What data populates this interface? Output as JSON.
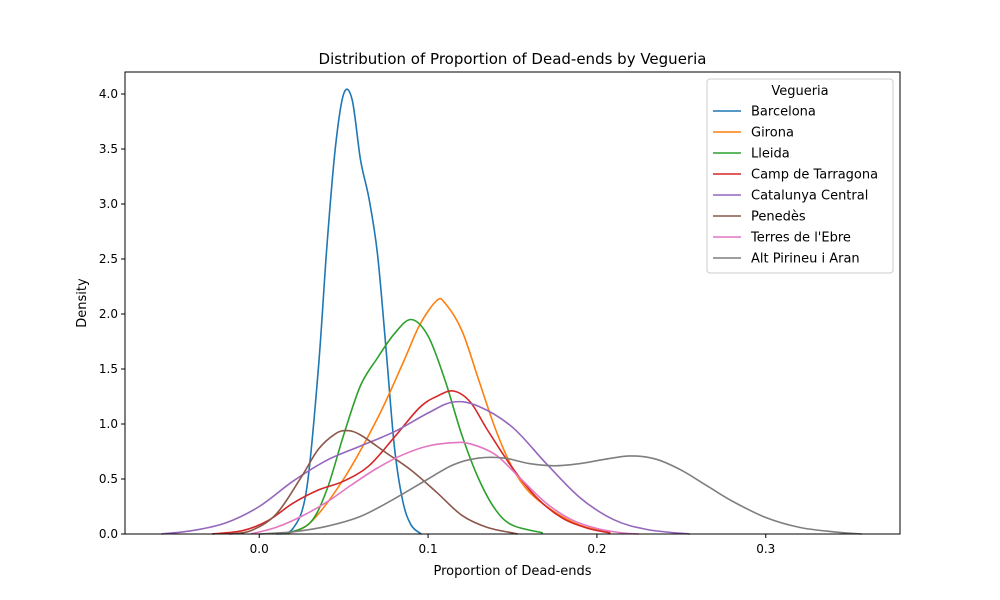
{
  "chart_data": {
    "type": "line",
    "title": "Distribution of Proportion of Dead-ends by Vegueria",
    "xlabel": "Proportion of Dead-ends",
    "ylabel": "Density",
    "xlim": [
      -0.0795,
      0.3795
    ],
    "ylim": [
      0,
      4.2
    ],
    "xticks": [
      0.0,
      0.1,
      0.2,
      0.3
    ],
    "xtick_labels": [
      "0.0",
      "0.1",
      "0.2",
      "0.3"
    ],
    "yticks": [
      0.0,
      0.5,
      1.0,
      1.5,
      2.0,
      2.5,
      3.0,
      3.5,
      4.0
    ],
    "ytick_labels": [
      "0.0",
      "0.5",
      "1.0",
      "1.5",
      "2.0",
      "2.5",
      "3.0",
      "3.5",
      "4.0"
    ],
    "grid": false,
    "legend": {
      "title": "Vegueria",
      "position": "top-right"
    },
    "series": [
      {
        "name": "Barcelona",
        "color": "#1f77b4",
        "points": [
          [
            0.01,
            0.0
          ],
          [
            0.02,
            0.05
          ],
          [
            0.028,
            0.4
          ],
          [
            0.035,
            1.5
          ],
          [
            0.04,
            2.6
          ],
          [
            0.045,
            3.5
          ],
          [
            0.05,
            4.0
          ],
          [
            0.055,
            3.95
          ],
          [
            0.06,
            3.4
          ],
          [
            0.065,
            3.05
          ],
          [
            0.07,
            2.55
          ],
          [
            0.075,
            1.7
          ],
          [
            0.08,
            0.8
          ],
          [
            0.085,
            0.3
          ],
          [
            0.09,
            0.08
          ],
          [
            0.096,
            0.0
          ]
        ]
      },
      {
        "name": "Girona",
        "color": "#ff7f0e",
        "points": [
          [
            0.015,
            0.0
          ],
          [
            0.03,
            0.1
          ],
          [
            0.05,
            0.5
          ],
          [
            0.07,
            1.05
          ],
          [
            0.085,
            1.55
          ],
          [
            0.095,
            1.9
          ],
          [
            0.105,
            2.12
          ],
          [
            0.11,
            2.1
          ],
          [
            0.12,
            1.85
          ],
          [
            0.13,
            1.4
          ],
          [
            0.14,
            0.95
          ],
          [
            0.15,
            0.6
          ],
          [
            0.16,
            0.38
          ],
          [
            0.175,
            0.2
          ],
          [
            0.19,
            0.08
          ],
          [
            0.208,
            0.01
          ]
        ]
      },
      {
        "name": "Lleida",
        "color": "#2ca02c",
        "points": [
          [
            0.015,
            0.0
          ],
          [
            0.03,
            0.1
          ],
          [
            0.04,
            0.4
          ],
          [
            0.05,
            0.9
          ],
          [
            0.06,
            1.35
          ],
          [
            0.07,
            1.6
          ],
          [
            0.08,
            1.82
          ],
          [
            0.09,
            1.95
          ],
          [
            0.1,
            1.8
          ],
          [
            0.11,
            1.4
          ],
          [
            0.12,
            0.9
          ],
          [
            0.13,
            0.5
          ],
          [
            0.14,
            0.22
          ],
          [
            0.15,
            0.08
          ],
          [
            0.168,
            0.01
          ]
        ]
      },
      {
        "name": "Camp de Tarragona",
        "color": "#d62728",
        "points": [
          [
            -0.028,
            0.0
          ],
          [
            -0.01,
            0.03
          ],
          [
            0.005,
            0.12
          ],
          [
            0.02,
            0.28
          ],
          [
            0.035,
            0.4
          ],
          [
            0.05,
            0.48
          ],
          [
            0.065,
            0.62
          ],
          [
            0.08,
            0.88
          ],
          [
            0.095,
            1.15
          ],
          [
            0.105,
            1.25
          ],
          [
            0.115,
            1.3
          ],
          [
            0.125,
            1.2
          ],
          [
            0.135,
            0.95
          ],
          [
            0.15,
            0.6
          ],
          [
            0.165,
            0.32
          ],
          [
            0.18,
            0.14
          ],
          [
            0.195,
            0.05
          ],
          [
            0.208,
            0.01
          ]
        ]
      },
      {
        "name": "Catalunya Central",
        "color": "#9467bd",
        "points": [
          [
            -0.058,
            0.0
          ],
          [
            -0.04,
            0.03
          ],
          [
            -0.02,
            0.1
          ],
          [
            0.0,
            0.25
          ],
          [
            0.02,
            0.48
          ],
          [
            0.04,
            0.67
          ],
          [
            0.06,
            0.8
          ],
          [
            0.08,
            0.93
          ],
          [
            0.1,
            1.1
          ],
          [
            0.115,
            1.2
          ],
          [
            0.13,
            1.16
          ],
          [
            0.15,
            0.97
          ],
          [
            0.17,
            0.64
          ],
          [
            0.19,
            0.33
          ],
          [
            0.21,
            0.13
          ],
          [
            0.23,
            0.04
          ],
          [
            0.255,
            0.0
          ]
        ]
      },
      {
        "name": "Penedès",
        "color": "#8c564b",
        "points": [
          [
            -0.018,
            0.0
          ],
          [
            -0.005,
            0.03
          ],
          [
            0.01,
            0.18
          ],
          [
            0.025,
            0.52
          ],
          [
            0.035,
            0.77
          ],
          [
            0.045,
            0.91
          ],
          [
            0.052,
            0.94
          ],
          [
            0.06,
            0.9
          ],
          [
            0.075,
            0.74
          ],
          [
            0.09,
            0.58
          ],
          [
            0.105,
            0.38
          ],
          [
            0.12,
            0.17
          ],
          [
            0.135,
            0.06
          ],
          [
            0.15,
            0.01
          ],
          [
            0.153,
            0.0
          ]
        ]
      },
      {
        "name": "Terres de l'Ebre",
        "color": "#e377c2",
        "points": [
          [
            -0.005,
            0.0
          ],
          [
            0.01,
            0.06
          ],
          [
            0.025,
            0.16
          ],
          [
            0.04,
            0.29
          ],
          [
            0.055,
            0.45
          ],
          [
            0.07,
            0.6
          ],
          [
            0.085,
            0.72
          ],
          [
            0.1,
            0.8
          ],
          [
            0.115,
            0.83
          ],
          [
            0.125,
            0.82
          ],
          [
            0.14,
            0.72
          ],
          [
            0.155,
            0.5
          ],
          [
            0.17,
            0.28
          ],
          [
            0.185,
            0.13
          ],
          [
            0.2,
            0.05
          ],
          [
            0.215,
            0.01
          ],
          [
            0.225,
            0.0
          ]
        ]
      },
      {
        "name": "Alt Pirineu i Aran",
        "color": "#7f7f7f",
        "points": [
          [
            0.0,
            0.0
          ],
          [
            0.02,
            0.02
          ],
          [
            0.04,
            0.07
          ],
          [
            0.06,
            0.16
          ],
          [
            0.08,
            0.32
          ],
          [
            0.1,
            0.5
          ],
          [
            0.115,
            0.63
          ],
          [
            0.13,
            0.69
          ],
          [
            0.145,
            0.69
          ],
          [
            0.16,
            0.64
          ],
          [
            0.175,
            0.62
          ],
          [
            0.19,
            0.64
          ],
          [
            0.205,
            0.68
          ],
          [
            0.22,
            0.71
          ],
          [
            0.235,
            0.68
          ],
          [
            0.25,
            0.58
          ],
          [
            0.265,
            0.44
          ],
          [
            0.28,
            0.3
          ],
          [
            0.3,
            0.15
          ],
          [
            0.32,
            0.06
          ],
          [
            0.34,
            0.02
          ],
          [
            0.357,
            0.0
          ]
        ]
      }
    ]
  }
}
